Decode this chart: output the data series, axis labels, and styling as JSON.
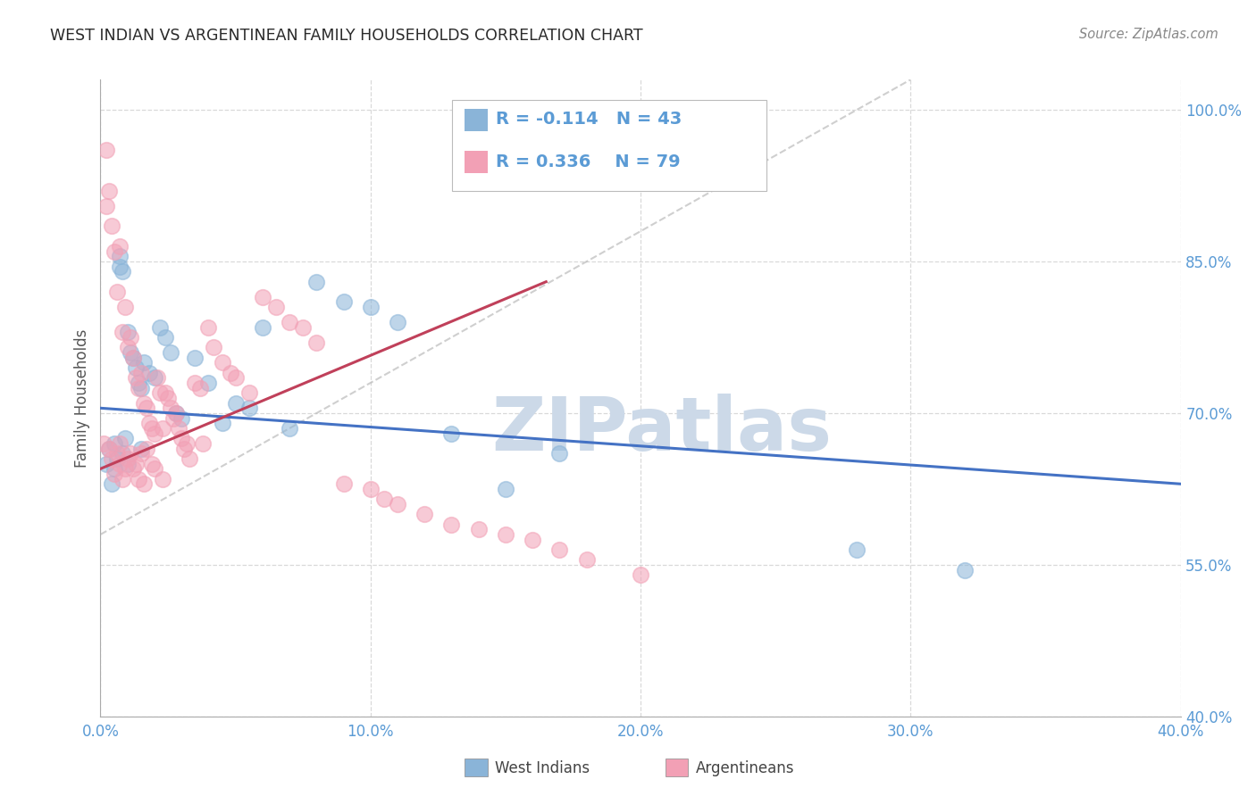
{
  "title": "WEST INDIAN VS ARGENTINEAN FAMILY HOUSEHOLDS CORRELATION CHART",
  "source": "Source: ZipAtlas.com",
  "ylabel": "Family Households",
  "yticks": [
    40.0,
    55.0,
    70.0,
    85.0,
    100.0
  ],
  "ytick_labels": [
    "40.0%",
    "55.0%",
    "70.0%",
    "85.0%",
    "100.0%"
  ],
  "xmin": 0.0,
  "xmax": 40.0,
  "ymin": 40.0,
  "ymax": 103.0,
  "west_indians_color": "#8ab4d8",
  "argentineans_color": "#f2a0b5",
  "west_indians_label": "West Indians",
  "argentineans_label": "Argentineans",
  "R_west": -0.114,
  "N_west": 43,
  "R_arg": 0.336,
  "N_arg": 79,
  "watermark": "ZIPatlas",
  "watermark_color": "#ccd9e8",
  "title_color": "#333333",
  "axis_label_color": "#555555",
  "tick_color": "#5b9bd5",
  "grid_color": "#d0d0d0",
  "legend_R_color": "#5b9bd5",
  "trend_blue": "#4472c4",
  "trend_pink": "#c0405a",
  "ref_line_color": "#bbbbbb",
  "west_scatter_x": [
    0.2,
    0.3,
    0.4,
    0.5,
    0.5,
    0.6,
    0.7,
    0.7,
    0.8,
    0.8,
    0.9,
    1.0,
    1.0,
    1.1,
    1.2,
    1.3,
    1.4,
    1.5,
    1.5,
    1.6,
    1.8,
    2.0,
    2.2,
    2.4,
    2.6,
    2.8,
    3.0,
    3.5,
    4.0,
    4.5,
    5.0,
    5.5,
    6.0,
    7.0,
    8.0,
    9.0,
    10.0,
    11.0,
    13.0,
    15.0,
    17.0,
    28.0,
    32.0
  ],
  "west_scatter_y": [
    65.0,
    66.5,
    63.0,
    64.5,
    67.0,
    65.5,
    84.5,
    85.5,
    84.0,
    66.0,
    67.5,
    65.0,
    78.0,
    76.0,
    75.5,
    74.5,
    73.0,
    72.5,
    66.5,
    75.0,
    74.0,
    73.5,
    78.5,
    77.5,
    76.0,
    70.0,
    69.5,
    75.5,
    73.0,
    69.0,
    71.0,
    70.5,
    78.5,
    68.5,
    83.0,
    81.0,
    80.5,
    79.0,
    68.0,
    62.5,
    66.0,
    56.5,
    54.5
  ],
  "arg_scatter_x": [
    0.1,
    0.2,
    0.2,
    0.3,
    0.3,
    0.4,
    0.4,
    0.5,
    0.5,
    0.6,
    0.6,
    0.7,
    0.7,
    0.7,
    0.8,
    0.8,
    0.9,
    0.9,
    1.0,
    1.0,
    1.1,
    1.1,
    1.2,
    1.2,
    1.3,
    1.3,
    1.4,
    1.4,
    1.5,
    1.5,
    1.6,
    1.6,
    1.7,
    1.7,
    1.8,
    1.9,
    1.9,
    2.0,
    2.0,
    2.1,
    2.2,
    2.3,
    2.3,
    2.4,
    2.5,
    2.6,
    2.7,
    2.8,
    2.9,
    3.0,
    3.1,
    3.2,
    3.3,
    3.5,
    3.7,
    3.8,
    4.0,
    4.2,
    4.5,
    4.8,
    5.0,
    5.5,
    6.0,
    6.5,
    7.0,
    7.5,
    8.0,
    9.0,
    10.0,
    10.5,
    11.0,
    12.0,
    13.0,
    14.0,
    15.0,
    16.0,
    17.0,
    18.0,
    20.0
  ],
  "arg_scatter_y": [
    67.0,
    96.0,
    90.5,
    92.0,
    66.5,
    88.5,
    65.5,
    86.0,
    64.0,
    82.0,
    66.0,
    67.0,
    65.0,
    86.5,
    78.0,
    63.5,
    80.5,
    64.5,
    65.5,
    76.5,
    77.5,
    66.0,
    75.5,
    64.5,
    73.5,
    65.0,
    72.5,
    63.5,
    74.0,
    66.0,
    71.0,
    63.0,
    70.5,
    66.5,
    69.0,
    68.5,
    65.0,
    68.0,
    64.5,
    73.5,
    72.0,
    68.5,
    63.5,
    72.0,
    71.5,
    70.5,
    69.5,
    70.0,
    68.5,
    67.5,
    66.5,
    67.0,
    65.5,
    73.0,
    72.5,
    67.0,
    78.5,
    76.5,
    75.0,
    74.0,
    73.5,
    72.0,
    81.5,
    80.5,
    79.0,
    78.5,
    77.0,
    63.0,
    62.5,
    61.5,
    61.0,
    60.0,
    59.0,
    58.5,
    58.0,
    57.5,
    56.5,
    55.5,
    54.0
  ]
}
